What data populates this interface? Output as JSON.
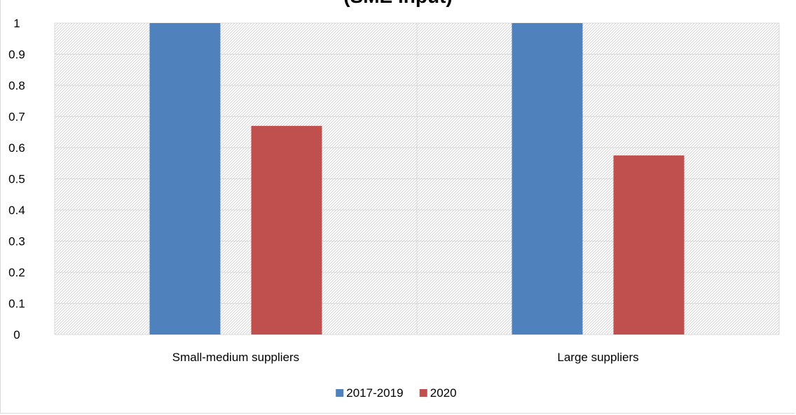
{
  "chart_data": {
    "type": "bar",
    "title": "(SME input)",
    "categories": [
      "Small-medium suppliers",
      "Large suppliers"
    ],
    "series": [
      {
        "name": "2017-2019",
        "values": [
          1.0,
          1.0
        ],
        "color": "#4f81bd"
      },
      {
        "name": "2020",
        "values": [
          0.67,
          0.575
        ],
        "color": "#c0504d"
      }
    ],
    "ylim": [
      0,
      1
    ],
    "yticks": [
      "0",
      "0.1",
      "0.2",
      "0.3",
      "0.4",
      "0.5",
      "0.6",
      "0.7",
      "0.8",
      "0.9",
      "1"
    ],
    "grid": true,
    "legend": "bottom"
  }
}
